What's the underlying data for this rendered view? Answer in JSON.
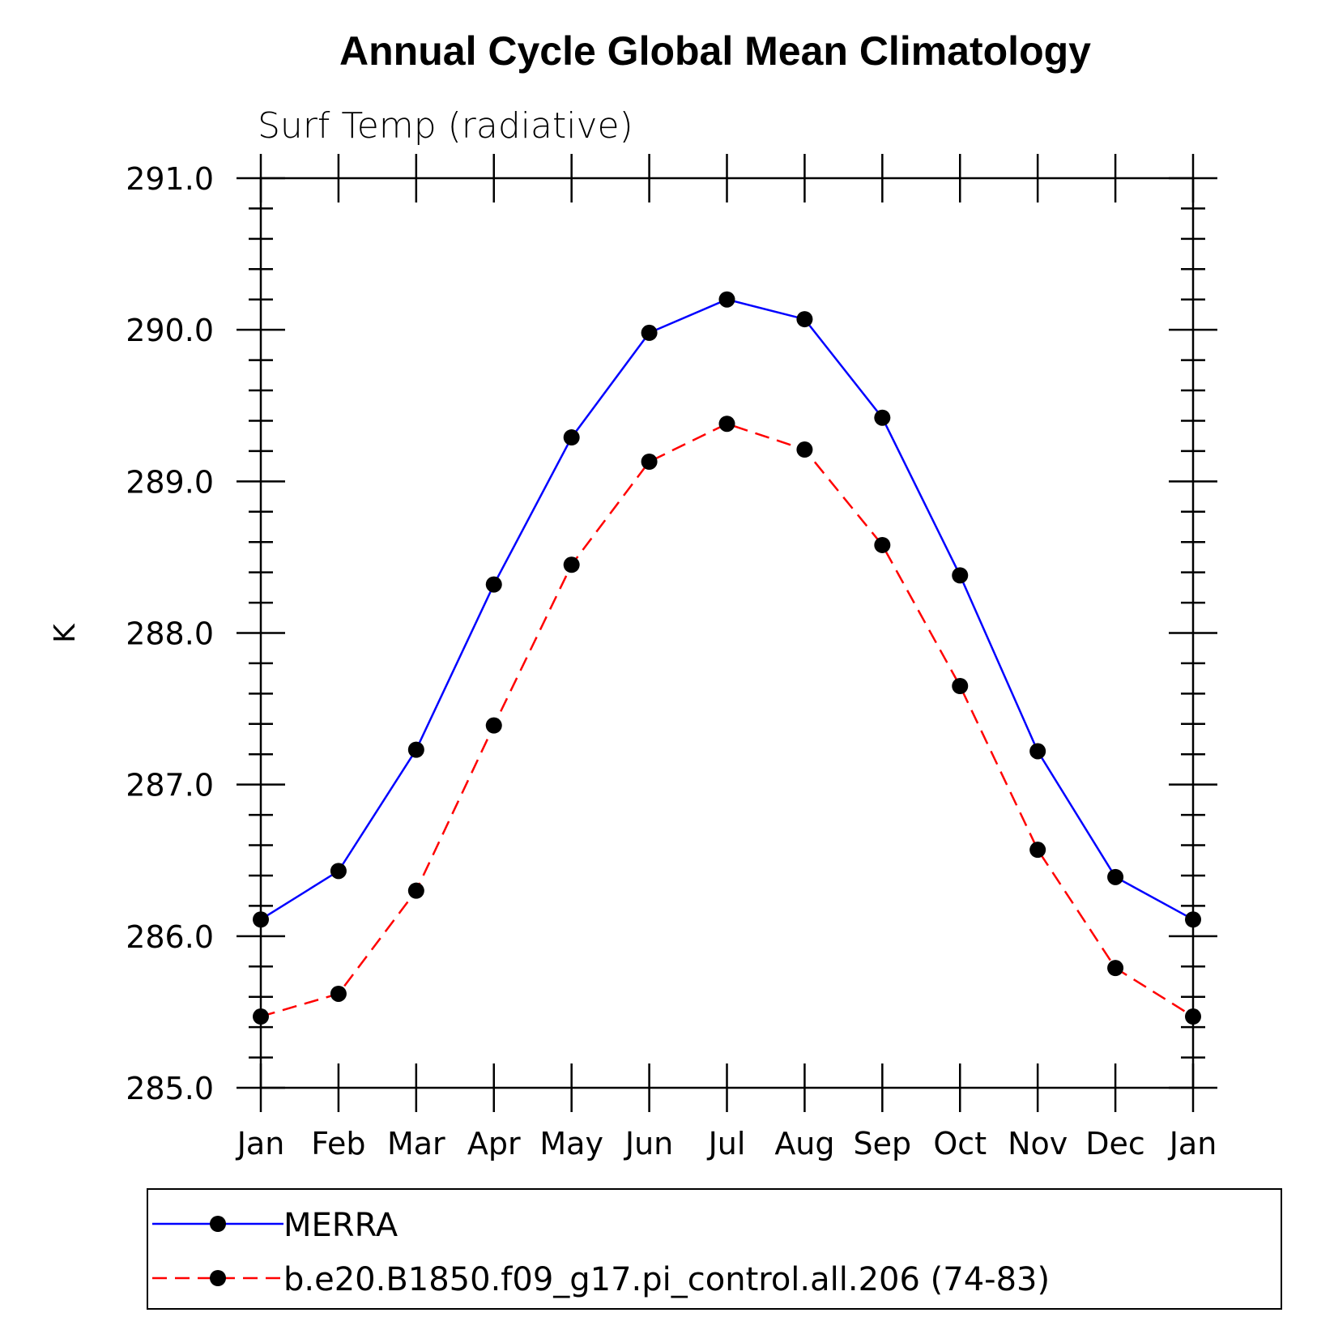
{
  "chart_data": {
    "type": "line",
    "title": "Annual Cycle Global Mean Climatology",
    "subtitle": "Surf Temp (radiative)",
    "ylabel": "K",
    "xlabel": "",
    "ylim": [
      285.0,
      291.0
    ],
    "yticks": [
      "285.0",
      "286.0",
      "287.0",
      "288.0",
      "289.0",
      "290.0",
      "291.0"
    ],
    "categories": [
      "Jan",
      "Feb",
      "Mar",
      "Apr",
      "May",
      "Jun",
      "Jul",
      "Aug",
      "Sep",
      "Oct",
      "Nov",
      "Dec",
      "Jan"
    ],
    "grid": false,
    "legend_position": "bottom",
    "series": [
      {
        "name": "MERRA",
        "color": "#0000ff",
        "dash": "solid",
        "marker": "filled-circle",
        "values": [
          286.11,
          286.43,
          287.23,
          288.32,
          289.29,
          289.98,
          290.2,
          290.07,
          289.42,
          288.38,
          287.22,
          286.39,
          286.11
        ]
      },
      {
        "name": "b.e20.B1850.f09_g17.pi_control.all.206 (74-83)",
        "color": "#ff0000",
        "dash": "dashed",
        "marker": "filled-circle",
        "values": [
          285.47,
          285.62,
          286.3,
          287.39,
          288.45,
          289.13,
          289.38,
          289.21,
          288.58,
          287.65,
          286.57,
          285.79,
          285.47
        ]
      }
    ]
  }
}
